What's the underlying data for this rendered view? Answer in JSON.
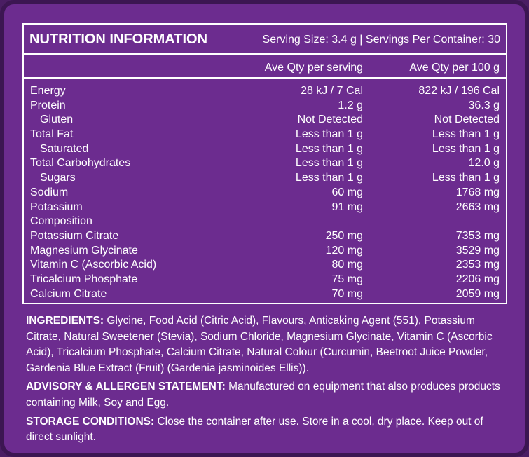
{
  "header": {
    "title": "NUTRITION INFORMATION",
    "serving": "Serving Size: 3.4 g | Servings Per Container: 30"
  },
  "table": {
    "columns": [
      "Ave Qty per serving",
      "Ave Qty per 100 g"
    ],
    "rows": [
      {
        "name": "Energy",
        "serving": "28 kJ / 7 Cal",
        "per100g": "822 kJ / 196 Cal"
      },
      {
        "name": "Protein",
        "serving": "1.2 g",
        "per100g": "36.3 g"
      },
      {
        "name": "Gluten",
        "serving": "Not Detected",
        "per100g": "Not Detected",
        "indent": true
      },
      {
        "name": "Total Fat",
        "serving": "Less than 1 g",
        "per100g": "Less than 1 g"
      },
      {
        "name": "Saturated",
        "serving": "Less than 1 g",
        "per100g": "Less than 1 g",
        "indent": true
      },
      {
        "name": "Total Carbohydrates",
        "serving": "Less than 1 g",
        "per100g": "12.0 g"
      },
      {
        "name": "Sugars",
        "serving": "Less than 1 g",
        "per100g": "Less than 1 g",
        "indent": true
      },
      {
        "name": "Sodium",
        "serving": "60 mg",
        "per100g": "1768 mg"
      },
      {
        "name": "Potassium",
        "serving": "91 mg",
        "per100g": "2663 mg"
      },
      {
        "name": "Composition"
      },
      {
        "name": "Potassium Citrate",
        "serving": "250 mg",
        "per100g": "7353 mg"
      },
      {
        "name": "Magnesium Glycinate",
        "serving": "120 mg",
        "per100g": "3529 mg"
      },
      {
        "name": "Vitamin C (Ascorbic Acid)",
        "serving": "80 mg",
        "per100g": "2353 mg"
      },
      {
        "name": "Tricalcium Phosphate",
        "serving": "75 mg",
        "per100g": "2206 mg"
      },
      {
        "name": "Calcium Citrate",
        "serving": "70 mg",
        "per100g": "2059 mg"
      }
    ]
  },
  "sections": [
    {
      "label": "INGREDIENTS:",
      "text": "Glycine, Food Acid (Citric Acid), Flavours, Anticaking Agent (551), Potassium Citrate, Natural Sweetener (Stevia), Sodium Chloride, Magnesium Glycinate, Vitamin C (Ascorbic Acid), Tricalcium Phosphate, Calcium Citrate, Natural Colour (Curcumin, Beetroot Juice Powder, Gardenia Blue Extract (Fruit) (Gardenia jasminoides Ellis))."
    },
    {
      "label": "ADVISORY & ALLERGEN STATEMENT:",
      "text": "Manufactured on equipment that also produces products containing Milk, Soy and Egg."
    },
    {
      "label": "STORAGE CONDITIONS:",
      "text": "Close the container after use. Store in a cool, dry place. Keep out of direct sunlight."
    }
  ]
}
